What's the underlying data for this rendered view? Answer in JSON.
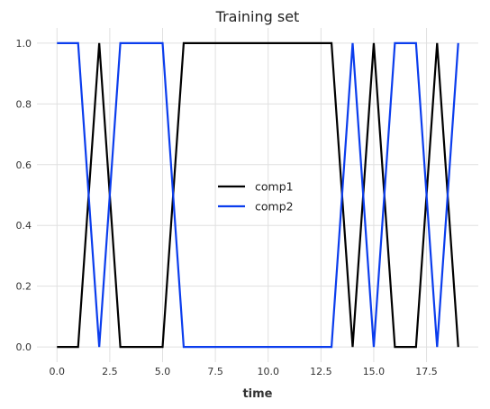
{
  "chart_data": {
    "type": "line",
    "title": "Training set",
    "xlabel": "time",
    "ylabel": "",
    "xlim": [
      -0.95,
      19.95
    ],
    "ylim": [
      -0.05,
      1.05
    ],
    "xticks": [
      0,
      2.5,
      5,
      7.5,
      10,
      12.5,
      15,
      17.5
    ],
    "xtick_labels": [
      "0.0",
      "2.5",
      "5.0",
      "7.5",
      "10.0",
      "12.5",
      "15.0",
      "17.5"
    ],
    "yticks": [
      0,
      0.2,
      0.4,
      0.6,
      0.8,
      1.0
    ],
    "ytick_labels": [
      "0.0",
      "0.2",
      "0.4",
      "0.6",
      "0.8",
      "1.0"
    ],
    "grid": true,
    "legend_position": "center-right",
    "x": [
      0,
      1,
      2,
      3,
      4,
      5,
      6,
      7,
      8,
      9,
      10,
      11,
      12,
      13,
      14,
      15,
      16,
      17,
      18,
      19
    ],
    "series": [
      {
        "name": "comp1",
        "color": "#000000",
        "values": [
          0,
          0,
          1,
          0,
          0,
          0,
          1,
          1,
          1,
          1,
          1,
          1,
          1,
          1,
          0,
          1,
          0,
          0,
          1,
          0
        ]
      },
      {
        "name": "comp2",
        "color": "#0b3ded",
        "values": [
          1,
          1,
          0,
          1,
          1,
          1,
          0,
          0,
          0,
          0,
          0,
          0,
          0,
          0,
          1,
          0,
          1,
          1,
          0,
          1
        ]
      }
    ]
  }
}
